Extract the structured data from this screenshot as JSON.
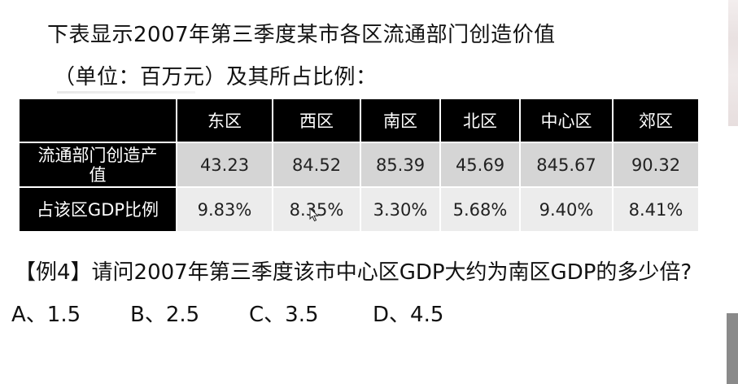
{
  "heading": {
    "line1": "下表显示2007年第三季度某市各区流通部门创造价值",
    "line2": "（单位：百万元）及其所占比例："
  },
  "table": {
    "columns": [
      "东区",
      "西区",
      "南区",
      "北区",
      "中心区",
      "郊区"
    ],
    "rows": [
      {
        "label": "流通部门创造产值",
        "values": [
          "43.23",
          "84.52",
          "85.39",
          "45.69",
          "845.67",
          "90.32"
        ]
      },
      {
        "label": "占该区GDP比例",
        "values": [
          "9.83%",
          "8.35%",
          "3.30%",
          "5.68%",
          "9.40%",
          "8.41%"
        ]
      }
    ]
  },
  "question": "【例4】请问2007年第三季度该市中心区GDP大约为南区GDP的多少倍?",
  "options": [
    "A、1.5",
    "B、2.5",
    "C、3.5",
    "D、4.5"
  ],
  "colors": {
    "header_bg": "#000000",
    "row1_bg": "#d5d5d5",
    "row2_bg": "#ececec"
  }
}
